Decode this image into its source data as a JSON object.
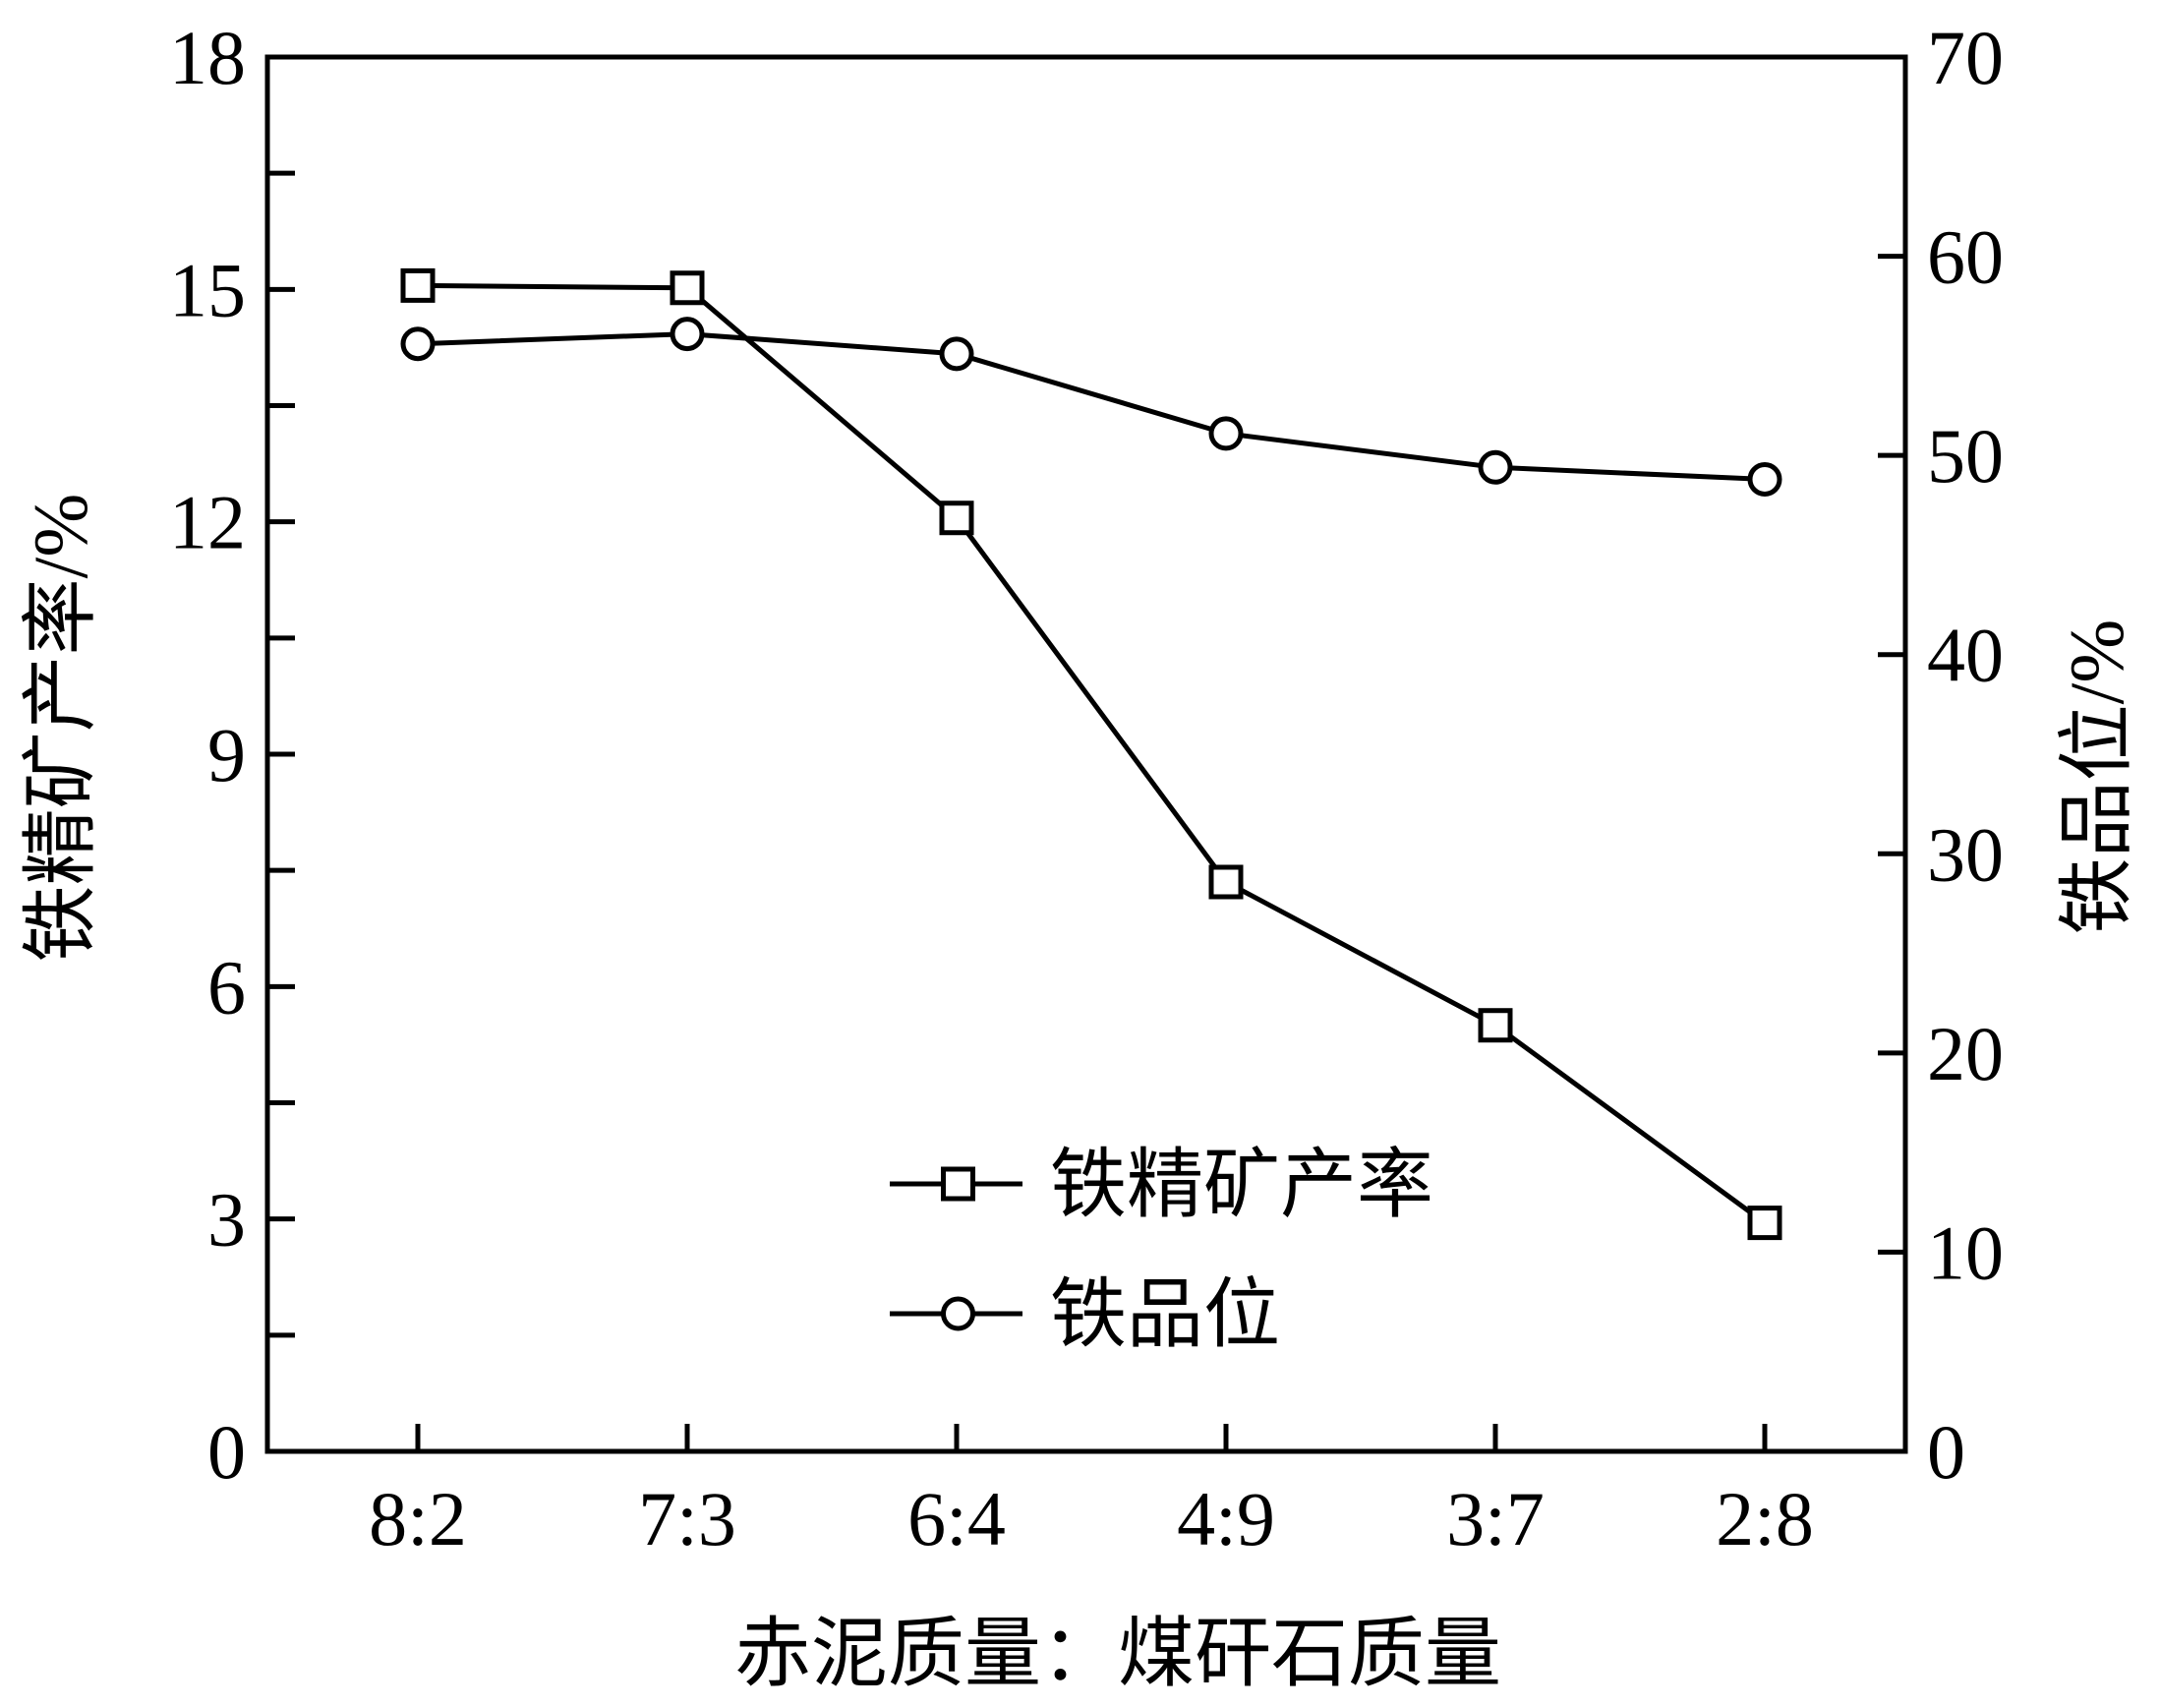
{
  "chart_data": {
    "type": "line",
    "title": "",
    "xlabel": "赤泥质量：煤矸石质量",
    "ylabel_left": "铁精矿产率/%",
    "ylabel_right": "铁品位/%",
    "categories": [
      "8:2",
      "7:3",
      "6:4",
      "4:9",
      "3:7",
      "2:8"
    ],
    "ylim_left": [
      0,
      18
    ],
    "yticks_left": [
      0,
      3,
      6,
      9,
      12,
      15,
      18
    ],
    "ylim_right": [
      0,
      70
    ],
    "yticks_right": [
      0,
      10,
      20,
      30,
      40,
      50,
      60,
      70
    ],
    "series": [
      {
        "name": "铁精矿产率",
        "axis": "left",
        "marker": "square",
        "values": [
          15.05,
          15.02,
          12.05,
          7.35,
          5.5,
          2.95
        ]
      },
      {
        "name": "铁品位",
        "axis": "right",
        "marker": "circle",
        "values": [
          55.6,
          56.1,
          55.1,
          51.1,
          49.4,
          48.8
        ]
      }
    ],
    "legend_position": "bottom-center",
    "grid": false
  }
}
